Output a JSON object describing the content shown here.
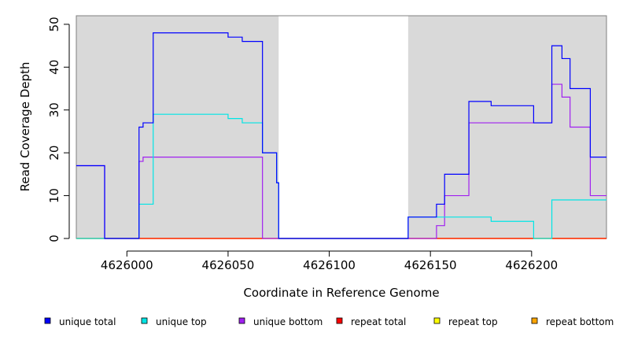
{
  "chart_data": {
    "type": "line",
    "step": true,
    "xlabel": "Coordinate in Reference Genome",
    "ylabel": "Read Coverage Depth",
    "xlim": [
      4625975,
      4626237
    ],
    "ylim": [
      0,
      52
    ],
    "xticks": [
      4626000,
      4626050,
      4626100,
      4626150,
      4626200
    ],
    "yticks": [
      0,
      10,
      20,
      30,
      40,
      50
    ],
    "grid": false,
    "legend_position": "bottom",
    "shaded_regions": [
      [
        4625975,
        4626075
      ],
      [
        4626139,
        4626237
      ]
    ],
    "shade_color": "#d9d9d9",
    "series": [
      {
        "name": "unique total",
        "color": "#0000ff",
        "x": [
          4625975,
          4625989,
          4626006,
          4626008,
          4626013,
          4626050,
          4626057,
          4626067,
          4626074,
          4626075,
          4626139,
          4626153,
          4626157,
          4626169,
          4626180,
          4626201,
          4626210,
          4626215,
          4626219,
          4626229,
          4626237
        ],
        "y": [
          17,
          0,
          26,
          27,
          48,
          47,
          46,
          20,
          13,
          0,
          5,
          8,
          15,
          32,
          31,
          27,
          45,
          42,
          35,
          19,
          19
        ]
      },
      {
        "name": "unique top",
        "color": "#00e5e5",
        "x": [
          4625975,
          4626006,
          4626013,
          4626050,
          4626057,
          4626067,
          4626074,
          4626075,
          4626139,
          4626180,
          4626201,
          4626210,
          4626237
        ],
        "y": [
          0,
          8,
          29,
          28,
          27,
          20,
          13,
          0,
          5,
          4,
          0,
          9,
          9
        ]
      },
      {
        "name": "unique bottom",
        "color": "#a020f0",
        "x": [
          4625975,
          4625989,
          4626006,
          4626008,
          4626067,
          4626153,
          4626157,
          4626169,
          4626201,
          4626210,
          4626215,
          4626219,
          4626229,
          4626237
        ],
        "y": [
          17,
          0,
          18,
          19,
          0,
          3,
          10,
          27,
          27,
          36,
          33,
          26,
          10,
          10
        ]
      },
      {
        "name": "repeat total",
        "color": "#ff0000",
        "x": [
          4625975,
          4626237
        ],
        "y": [
          0,
          0
        ]
      },
      {
        "name": "repeat top",
        "color": "#ffff00",
        "x": [
          4625975,
          4626237
        ],
        "y": [
          0,
          0
        ]
      },
      {
        "name": "repeat bottom",
        "color": "#ffa500",
        "x": [
          4625975,
          4626237
        ],
        "y": [
          0,
          0
        ]
      }
    ]
  }
}
